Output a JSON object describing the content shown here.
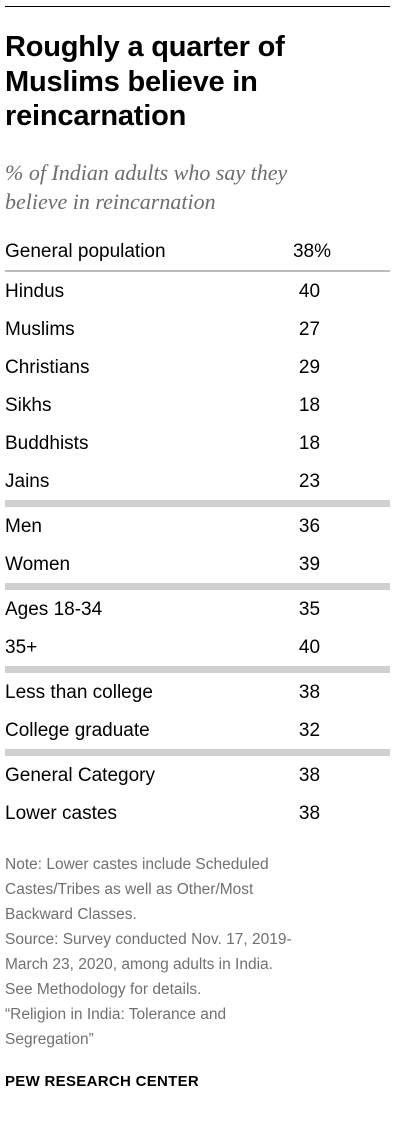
{
  "title": [
    "Roughly a quarter of",
    "Muslims believe in",
    "reincarnation"
  ],
  "subtitle": [
    "% of Indian adults who say they",
    "believe in reincarnation"
  ],
  "chart_data": {
    "type": "table",
    "value_label": "%",
    "groups": [
      {
        "rows": [
          {
            "label": "General population",
            "value": 38,
            "display": "38%"
          }
        ]
      },
      {
        "rows": [
          {
            "label": "Hindus",
            "value": 40,
            "display": "40"
          },
          {
            "label": "Muslims",
            "value": 27,
            "display": "27"
          },
          {
            "label": "Christians",
            "value": 29,
            "display": "29"
          },
          {
            "label": "Sikhs",
            "value": 18,
            "display": "18"
          },
          {
            "label": "Buddhists",
            "value": 18,
            "display": "18"
          },
          {
            "label": "Jains",
            "value": 23,
            "display": "23"
          }
        ]
      },
      {
        "rows": [
          {
            "label": "Men",
            "value": 36,
            "display": "36"
          },
          {
            "label": "Women",
            "value": 39,
            "display": "39"
          }
        ]
      },
      {
        "rows": [
          {
            "label": "Ages 18-34",
            "value": 35,
            "display": "35"
          },
          {
            "label": "35+",
            "value": 40,
            "display": "40"
          }
        ]
      },
      {
        "rows": [
          {
            "label": "Less than college",
            "value": 38,
            "display": "38"
          },
          {
            "label": "College graduate",
            "value": 32,
            "display": "32"
          }
        ]
      },
      {
        "rows": [
          {
            "label": "General Category",
            "value": 38,
            "display": "38"
          },
          {
            "label": "Lower castes",
            "value": 38,
            "display": "38"
          }
        ]
      }
    ]
  },
  "notes": [
    "Note: Lower castes include Scheduled",
    "Castes/Tribes as well as Other/Most",
    "Backward Classes.",
    "Source: Survey conducted Nov. 17, 2019-",
    "March 23, 2020, among adults in India.",
    "See Methodology for details.",
    "“Religion in India: Tolerance and",
    "Segregation”"
  ],
  "footer": "PEW RESEARCH CENTER",
  "colors": {
    "text": "#000000",
    "subtitle": "#6d6d6d",
    "note": "#707070",
    "separator": "#d0d0d0"
  }
}
